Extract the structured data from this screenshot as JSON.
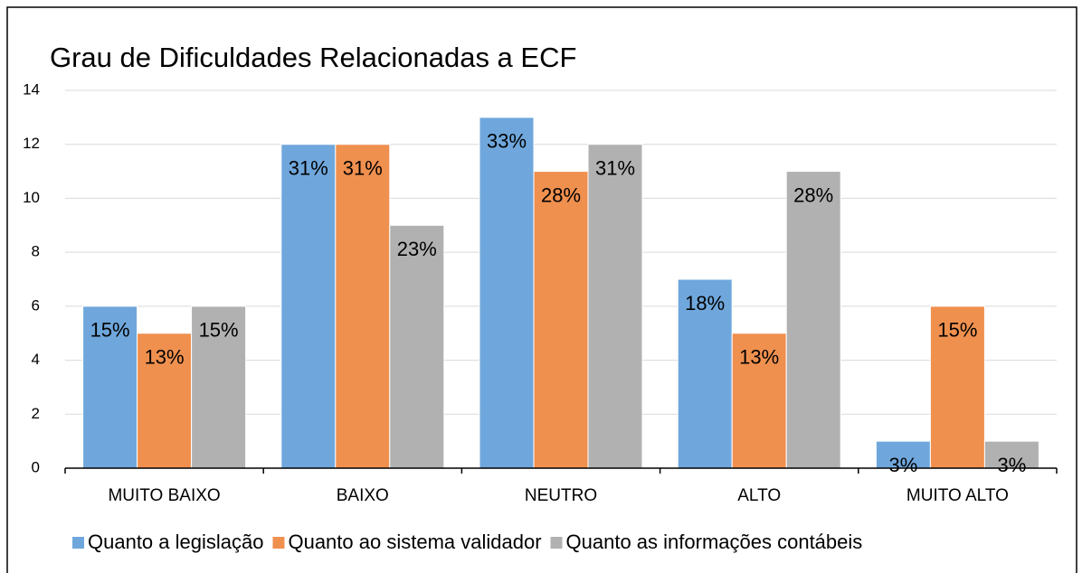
{
  "chart_data": {
    "type": "bar",
    "title": "Grau de Dificuldades Relacionadas a ECF",
    "categories": [
      "MUITO BAIXO",
      "BAIXO",
      "NEUTRO",
      "ALTO",
      "MUITO ALTO"
    ],
    "series": [
      {
        "name": "Quanto a legislação",
        "color": "#6fa7dc",
        "values": [
          6,
          12,
          13,
          7,
          1
        ],
        "value_labels": [
          "15%",
          "31%",
          "33%",
          "18%",
          "3%"
        ]
      },
      {
        "name": "Quanto ao sistema validador",
        "color": "#f0904f",
        "values": [
          5,
          12,
          11,
          5,
          6
        ],
        "value_labels": [
          "13%",
          "31%",
          "28%",
          "13%",
          "15%"
        ]
      },
      {
        "name": "Quanto as informações contábeis",
        "color": "#b1b1b1",
        "values": [
          6,
          9,
          12,
          11,
          1
        ],
        "value_labels": [
          "15%",
          "23%",
          "31%",
          "28%",
          "3%"
        ]
      }
    ],
    "ylim": [
      0,
      14
    ],
    "yticks": [
      0,
      2,
      4,
      6,
      8,
      10,
      12,
      14
    ],
    "grid": true,
    "legend": "bottom"
  }
}
